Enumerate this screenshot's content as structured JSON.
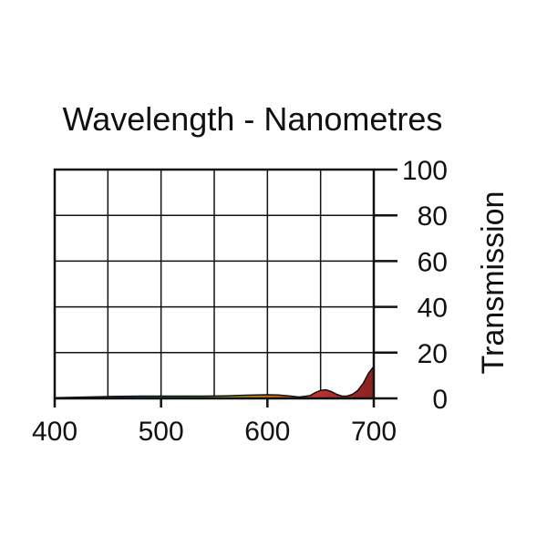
{
  "chart_data": {
    "type": "area",
    "title": "Wavelength - Nanometres",
    "xlabel": "",
    "ylabel": "Transmission",
    "xlim": [
      400,
      700
    ],
    "ylim": [
      0,
      100
    ],
    "x_ticks": [
      400,
      500,
      600,
      700
    ],
    "y_ticks": [
      0,
      20,
      40,
      60,
      80,
      100
    ],
    "grid": true,
    "y_axis_side": "right",
    "x": [
      400,
      420,
      440,
      460,
      480,
      500,
      520,
      540,
      560,
      580,
      600,
      610,
      620,
      630,
      640,
      645,
      650,
      655,
      660,
      665,
      670,
      675,
      680,
      685,
      690,
      695,
      700
    ],
    "y": [
      0.3,
      0.5,
      0.7,
      0.9,
      1.0,
      1.0,
      1.0,
      1.0,
      1.1,
      1.4,
      1.6,
      1.5,
      1.1,
      0.6,
      1.2,
      2.5,
      3.5,
      3.8,
      3.0,
      1.8,
      1.0,
      1.0,
      1.8,
      3.5,
      6.5,
      11.0,
      14.0
    ],
    "colors": {
      "spectrum_400": "#4a2a7a",
      "spectrum_470": "#2a4aa8",
      "spectrum_520": "#2e8a3c",
      "spectrum_570": "#a8a030",
      "spectrum_610": "#c8641e",
      "spectrum_650": "#b83030",
      "spectrum_700": "#8a2222",
      "outline": "#111111"
    }
  }
}
